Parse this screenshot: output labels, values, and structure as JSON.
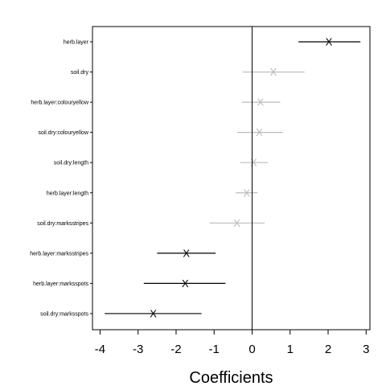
{
  "chart_data": {
    "type": "scatter",
    "xlabel": "Coefficients",
    "xlim": [
      -4.2,
      3.1
    ],
    "x_ticks": [
      "-4",
      "-3",
      "-2",
      "-1",
      "0",
      "1",
      "2",
      "3"
    ],
    "x_tick_values": [
      -4,
      -3,
      -2,
      -1,
      0,
      1,
      2,
      3
    ],
    "reference_line_x": 0,
    "marker_symbol": "X",
    "colors": {
      "significant": "#000000",
      "nonsignificant": "#bbbbbb"
    },
    "terms": [
      {
        "label": "herb.layer",
        "estimate": 2.02,
        "lower": 1.22,
        "upper": 2.85,
        "significant": true
      },
      {
        "label": "soil.dry",
        "estimate": 0.56,
        "lower": -0.25,
        "upper": 1.38,
        "significant": false
      },
      {
        "label": "herb.layer:colouryellow",
        "estimate": 0.22,
        "lower": -0.27,
        "upper": 0.74,
        "significant": false
      },
      {
        "label": "soil.dry:colouryellow",
        "estimate": 0.19,
        "lower": -0.39,
        "upper": 0.81,
        "significant": false
      },
      {
        "label": "soil.dry:length",
        "estimate": 0.04,
        "lower": -0.31,
        "upper": 0.42,
        "significant": false
      },
      {
        "label": "herb.layer:length",
        "estimate": -0.14,
        "lower": -0.43,
        "upper": 0.14,
        "significant": false
      },
      {
        "label": "soil.dry:marksstripes",
        "estimate": -0.4,
        "lower": -1.12,
        "upper": 0.33,
        "significant": false
      },
      {
        "label": "herb.layer:marksstripes",
        "estimate": -1.73,
        "lower": -2.5,
        "upper": -0.96,
        "significant": true
      },
      {
        "label": "herb.layer:marksspots",
        "estimate": -1.76,
        "lower": -2.85,
        "upper": -0.7,
        "significant": true
      },
      {
        "label": "soil.dry:marksspots",
        "estimate": -2.6,
        "lower": -3.88,
        "upper": -1.33,
        "significant": true
      }
    ]
  }
}
